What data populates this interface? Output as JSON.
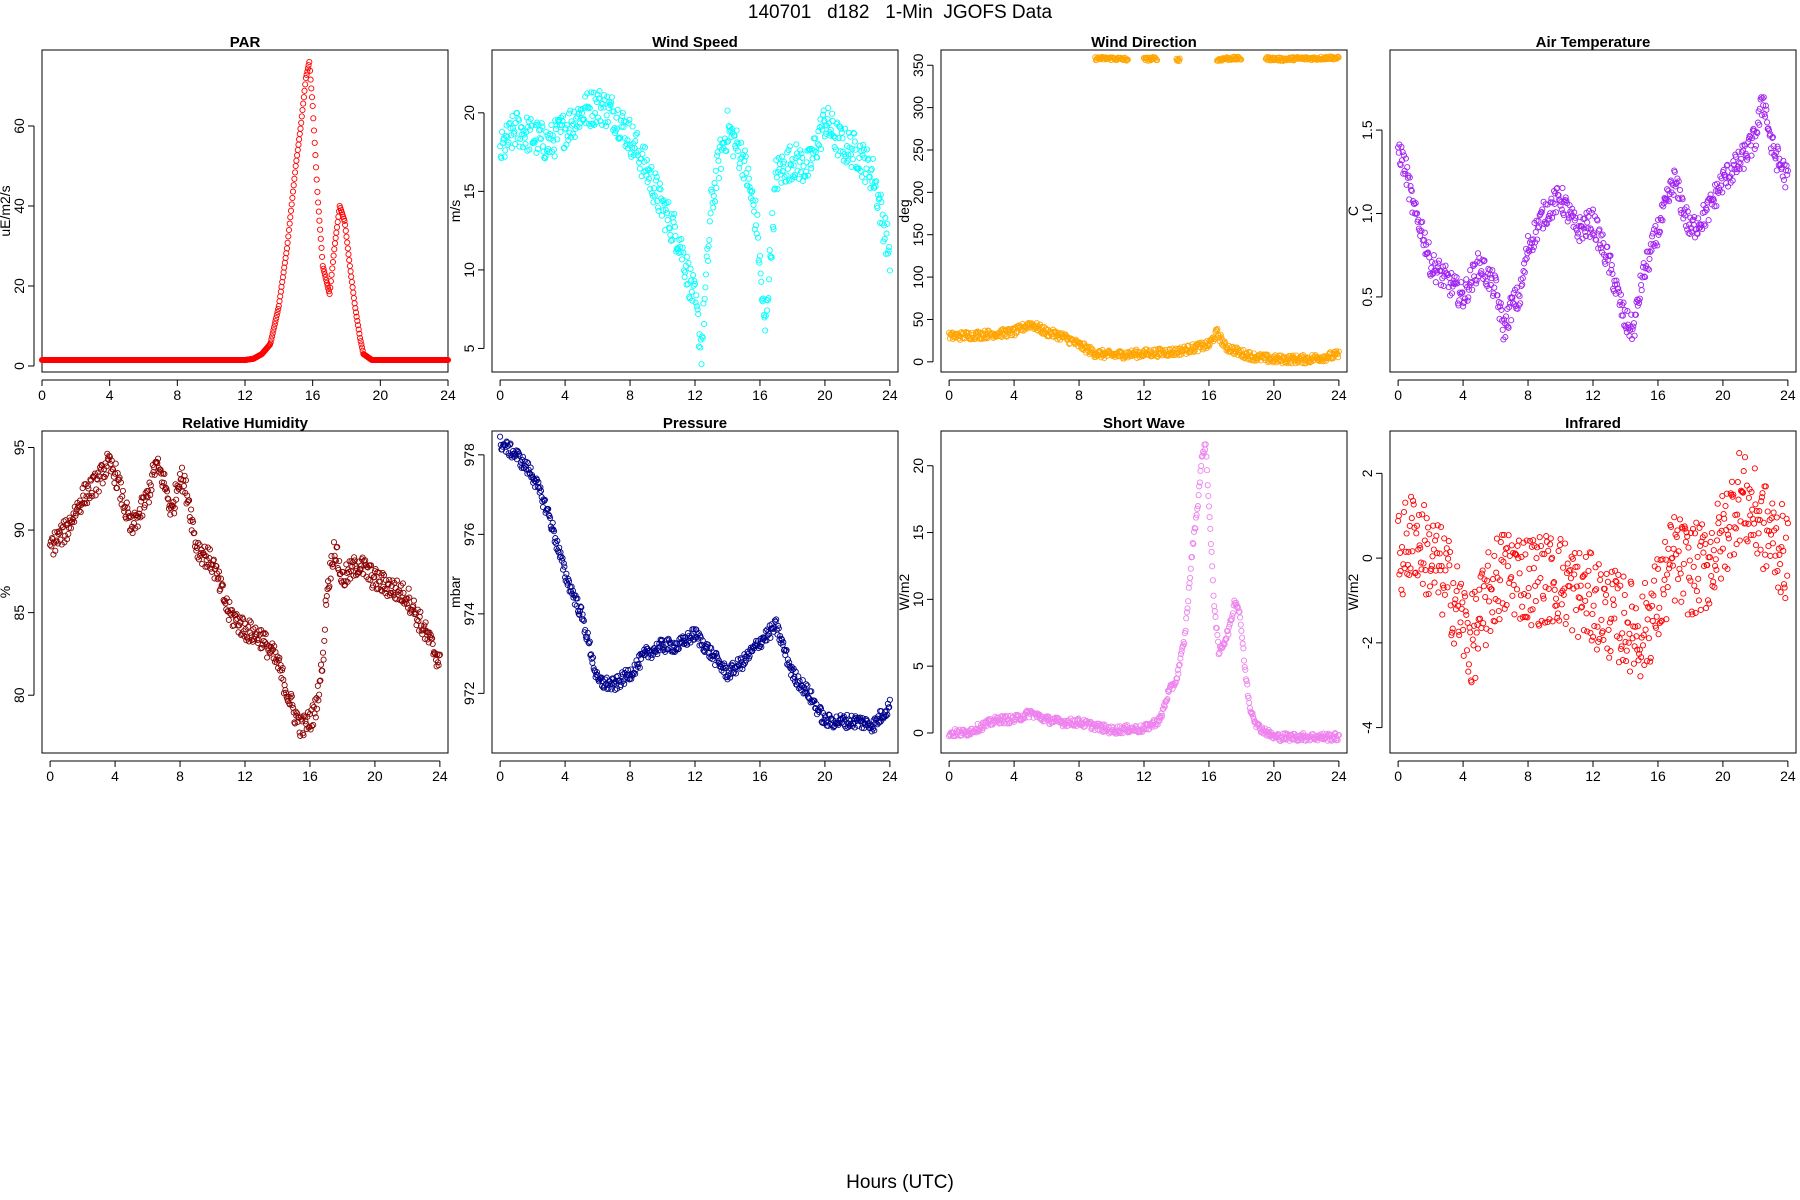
{
  "title": "140701   d182   1-Min  JGOFS Data",
  "xlabel_common": "Hours (UTC)",
  "chart_data": [
    {
      "type": "scatter",
      "title": "PAR",
      "xlabel": "",
      "ylabel": "uE/m2/s",
      "color": "#ff0000",
      "xlim": [
        0,
        24
      ],
      "ylim": [
        -1.5,
        79
      ],
      "x_ticks": [
        "0",
        "4",
        "8",
        "12",
        "16",
        "20",
        "24"
      ],
      "y_ticks": [
        "0",
        "20",
        "40",
        "60"
      ],
      "x": [
        0,
        2,
        4,
        6,
        8,
        10,
        12,
        12.5,
        13,
        13.5,
        14,
        14.5,
        15,
        15.3,
        15.6,
        15.8,
        16,
        16.3,
        16.6,
        17,
        17.3,
        17.6,
        17.9,
        18.2,
        18.5,
        18.8,
        19,
        19.5,
        20,
        22,
        24
      ],
      "y": [
        1.5,
        1.5,
        1.5,
        1.5,
        1.5,
        1.5,
        1.5,
        1.8,
        3,
        5.5,
        15,
        30,
        50,
        60,
        72,
        76,
        65,
        42,
        25,
        18,
        30,
        40,
        36,
        25,
        15,
        7,
        3,
        1.5,
        1.5,
        1.5,
        1.5
      ]
    },
    {
      "type": "scatter",
      "title": "Wind Speed",
      "xlabel": "",
      "ylabel": "m/s",
      "color": "#00ffff",
      "xlim": [
        -0.5,
        24.5
      ],
      "ylim": [
        3.5,
        24
      ],
      "x_ticks": [
        "0",
        "4",
        "8",
        "12",
        "16",
        "20",
        "24"
      ],
      "y_ticks": [
        "5",
        "10",
        "15",
        "20"
      ],
      "x": [
        0,
        1,
        2,
        3,
        4,
        5,
        6,
        7,
        8,
        9,
        10,
        11,
        12,
        12.4,
        13,
        13.5,
        14,
        15,
        15.8,
        16.3,
        17,
        18,
        19,
        20,
        21,
        22,
        23,
        24
      ],
      "y": [
        17.5,
        19,
        18.5,
        18,
        19,
        20,
        20.5,
        20,
        18.5,
        16.5,
        14,
        12,
        8,
        5,
        14,
        17,
        19,
        17,
        13,
        6,
        16,
        17,
        16.5,
        19.5,
        18,
        17.5,
        16,
        11
      ],
      "spread": 2.4
    },
    {
      "type": "scatter",
      "title": "Wind Direction",
      "xlabel": "",
      "ylabel": "deg",
      "color": "#ffa500",
      "xlim": [
        -0.5,
        24.5
      ],
      "ylim": [
        -12,
        368
      ],
      "x_ticks": [
        "0",
        "4",
        "8",
        "12",
        "16",
        "20",
        "24"
      ],
      "y_ticks": [
        "0",
        "50",
        "100",
        "150",
        "200",
        "250",
        "300",
        "350"
      ],
      "x": [
        0,
        2,
        4,
        5,
        6,
        7,
        8,
        9,
        10,
        12,
        14,
        16,
        16.5,
        17,
        18,
        19,
        20,
        22,
        24
      ],
      "y": [
        30,
        32,
        35,
        45,
        35,
        30,
        20,
        10,
        8,
        10,
        12,
        20,
        35,
        18,
        10,
        5,
        3,
        3,
        8
      ],
      "extra": [
        {
          "x": [
            9,
            10,
            11
          ],
          "y": [
            358,
            358,
            357
          ]
        },
        {
          "x": [
            12,
            12.8
          ],
          "y": [
            357,
            358
          ]
        },
        {
          "x": [
            14,
            14.2
          ],
          "y": [
            356,
            357
          ]
        },
        {
          "x": [
            16.5,
            17,
            18
          ],
          "y": [
            356,
            358,
            358
          ]
        },
        {
          "x": [
            19.5,
            20.5,
            21.5,
            22.5,
            23.5,
            24
          ],
          "y": [
            358,
            357,
            358,
            358,
            359,
            358
          ]
        }
      ],
      "spread": 10
    },
    {
      "type": "scatter",
      "title": "Air Temperature",
      "xlabel": "",
      "ylabel": "C",
      "color": "#a020f0",
      "xlim": [
        -0.5,
        24.5
      ],
      "ylim": [
        0.05,
        1.98
      ],
      "x_ticks": [
        "0",
        "4",
        "8",
        "12",
        "16",
        "20",
        "24"
      ],
      "y_ticks": [
        "0.5",
        "1.0",
        "1.5"
      ],
      "x": [
        0,
        0.5,
        1,
        1.5,
        2,
        3,
        4,
        5,
        6,
        6.5,
        7,
        7.5,
        8,
        9,
        10,
        11,
        12,
        13,
        14,
        14.5,
        15,
        16,
        17,
        18,
        19,
        20,
        21,
        22,
        22.5,
        23,
        24
      ],
      "y": [
        1.4,
        1.25,
        1.0,
        0.9,
        0.7,
        0.6,
        0.5,
        0.7,
        0.55,
        0.3,
        0.45,
        0.5,
        0.8,
        1.0,
        1.1,
        0.9,
        0.95,
        0.7,
        0.35,
        0.3,
        0.6,
        0.9,
        1.2,
        0.9,
        1.0,
        1.2,
        1.3,
        1.45,
        1.7,
        1.4,
        1.2
      ],
      "spread": 0.16
    },
    {
      "type": "scatter",
      "title": "Relative Humidity",
      "xlabel": "",
      "ylabel": "%",
      "color": "#8b0000",
      "xlim": [
        -0.5,
        24.5
      ],
      "ylim": [
        76.5,
        96
      ],
      "x_ticks": [
        "0",
        "4",
        "8",
        "12",
        "16",
        "20",
        "24"
      ],
      "y_ticks": [
        "80",
        "85",
        "90",
        "95"
      ],
      "x": [
        0,
        1,
        2,
        3,
        3.5,
        4,
        5,
        6,
        6.5,
        7,
        7.5,
        8,
        8.5,
        9,
        10,
        11,
        12,
        13,
        14,
        15,
        15.5,
        16,
        16.3,
        16.8,
        17,
        17.5,
        18,
        19,
        20,
        21,
        22,
        23,
        24
      ],
      "y": [
        89,
        90,
        92,
        93,
        94,
        93.5,
        90,
        92,
        94,
        93,
        91,
        93.5,
        92,
        89,
        88,
        85,
        84,
        83.5,
        82,
        79,
        78,
        78.5,
        79,
        82,
        86,
        89,
        87,
        88,
        87,
        86.5,
        86,
        84,
        82
      ],
      "spread": 1.4
    },
    {
      "type": "scatter",
      "title": "Pressure",
      "xlabel": "",
      "ylabel": "mbar",
      "color": "#00008b",
      "xlim": [
        -0.5,
        24.5
      ],
      "ylim": [
        970.5,
        978.6
      ],
      "x_ticks": [
        "0",
        "4",
        "8",
        "12",
        "16",
        "20",
        "24"
      ],
      "y_ticks": [
        "972",
        "974",
        "976",
        "978"
      ],
      "x": [
        0,
        1,
        2,
        3,
        4,
        5,
        5.5,
        6,
        7,
        8,
        9,
        10,
        11,
        12,
        13,
        14,
        15,
        16,
        17,
        18,
        19,
        20,
        21,
        22,
        23,
        24
      ],
      "y": [
        978.3,
        978,
        977.5,
        976.5,
        975,
        974,
        973.2,
        972.3,
        972.2,
        972.5,
        973,
        973.2,
        973.2,
        973.5,
        973,
        972.5,
        972.8,
        973.3,
        973.7,
        972.5,
        972,
        971.3,
        971.3,
        971.3,
        971.2,
        971.7
      ],
      "spread": 0.35
    },
    {
      "type": "scatter",
      "title": "Short Wave",
      "xlabel": "",
      "ylabel": "W/m2",
      "color": "#ee82ee",
      "xlim": [
        -0.5,
        24.5
      ],
      "ylim": [
        -1.5,
        22.6
      ],
      "x_ticks": [
        "0",
        "4",
        "8",
        "12",
        "16",
        "20",
        "24"
      ],
      "y_ticks": [
        "0",
        "5",
        "10",
        "15",
        "20"
      ],
      "x": [
        0,
        1,
        2,
        3,
        4,
        5,
        6,
        7,
        8,
        9,
        10,
        11,
        12,
        13,
        13.5,
        14,
        14.5,
        15,
        15.3,
        15.6,
        15.8,
        16,
        16.3,
        16.6,
        17,
        17.3,
        17.6,
        17.9,
        18.2,
        18.5,
        19,
        20,
        22,
        24
      ],
      "y": [
        0,
        0,
        0.5,
        1,
        1,
        1.5,
        1,
        0.8,
        0.8,
        0.5,
        0.2,
        0.3,
        0.3,
        1,
        3,
        4,
        7,
        14,
        17,
        21,
        21.5,
        17,
        10,
        6,
        7,
        8,
        10,
        9,
        5,
        2,
        0.5,
        -0.3,
        -0.3,
        -0.3
      ],
      "spread": 0.6
    },
    {
      "type": "scatter",
      "title": "Infrared",
      "xlabel": "",
      "ylabel": "W/m2",
      "color": "#ff0000",
      "xlim": [
        -0.5,
        24.5
      ],
      "ylim": [
        -4.6,
        3.0
      ],
      "x_ticks": [
        "0",
        "4",
        "8",
        "12",
        "16",
        "20",
        "24"
      ],
      "y_ticks": [
        "-4",
        "-2",
        "0",
        "2"
      ],
      "x": [
        0,
        1,
        2,
        3,
        4,
        4.5,
        5,
        6,
        7,
        8,
        9,
        10,
        11,
        12,
        13,
        14,
        15,
        16,
        17,
        18,
        19,
        20,
        21,
        22,
        23,
        24
      ],
      "y": [
        0,
        0.6,
        0,
        -0.5,
        -1.5,
        -2,
        -1.5,
        -0.5,
        -0.3,
        -0.5,
        -0.5,
        -0.5,
        -0.8,
        -1,
        -1.3,
        -1.5,
        -1.8,
        -1,
        0,
        -0.3,
        -0.2,
        0.5,
        1.5,
        1,
        0.5,
        0
      ],
      "spread": 2.2
    }
  ]
}
